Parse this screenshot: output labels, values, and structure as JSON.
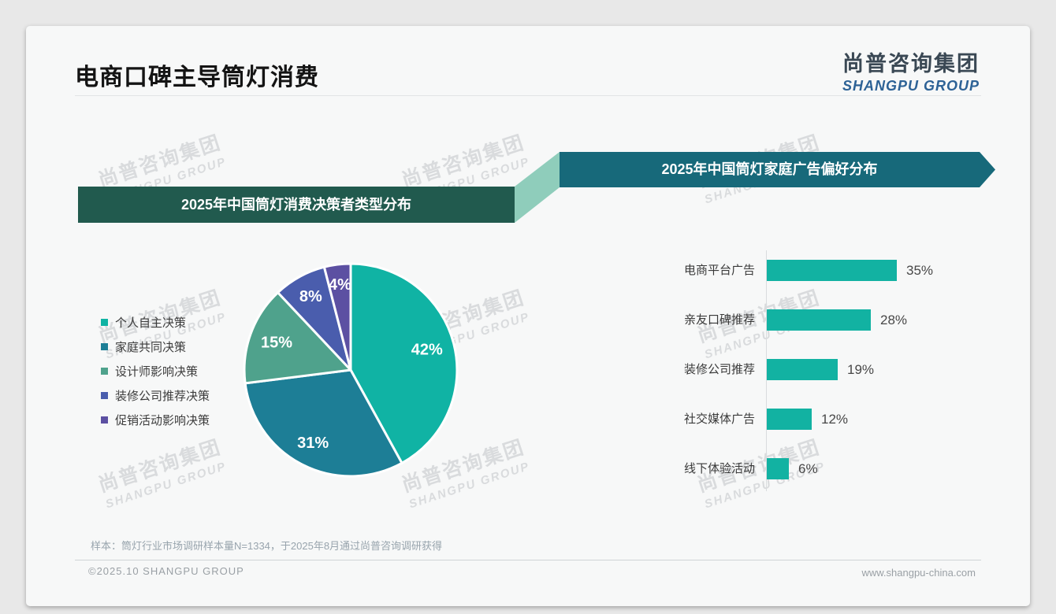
{
  "page": {
    "title": "电商口碑主导筒灯消费",
    "logo": {
      "cn": "尚普咨询集团",
      "en": "SHANGPU GROUP"
    },
    "watermark": {
      "cn": "尚普咨询集团",
      "en": "SHANGPU GROUP"
    },
    "footnote": "样本：筒灯行业市场调研样本量N=1334，于2025年8月通过尚普咨询调研获得",
    "footer_left": "©2025.10 SHANGPU GROUP",
    "footer_right": "www.shangpu-china.com"
  },
  "colors": {
    "left_banner": "#215a4e",
    "right_banner": "#17697a",
    "connector": "#8fcdbb",
    "logo_en": "#2d6296",
    "bar": "#12b2a2"
  },
  "chart_data": [
    {
      "type": "pie",
      "title": "2025年中国筒灯消费决策者类型分布",
      "labels": [
        "个人自主决策",
        "家庭共同决策",
        "设计师影响决策",
        "装修公司推荐决策",
        "促销活动影响决策"
      ],
      "values": [
        42,
        31,
        15,
        8,
        4
      ],
      "unit": "%",
      "data_labels": [
        "42%",
        "31%",
        "15%",
        "8%",
        "4%"
      ],
      "colors": [
        "#10b3a4",
        "#1d7e96",
        "#4fa28c",
        "#4a5dad",
        "#5c50a2"
      ],
      "legend_position": "left",
      "start_angle_deg": 0,
      "direction": "clockwise"
    },
    {
      "type": "bar",
      "title": "2025年中国筒灯家庭广告偏好分布",
      "orientation": "horizontal",
      "categories": [
        "电商平台广告",
        "亲友口碑推荐",
        "装修公司推荐",
        "社交媒体广告",
        "线下体验活动"
      ],
      "values": [
        35,
        28,
        19,
        12,
        6
      ],
      "unit": "%",
      "data_labels": [
        "35%",
        "28%",
        "19%",
        "12%",
        "6%"
      ],
      "xlim": [
        0,
        40
      ],
      "bar_color": "#12b2a2",
      "grid": false,
      "value_label_position": "right-of-bar"
    }
  ]
}
